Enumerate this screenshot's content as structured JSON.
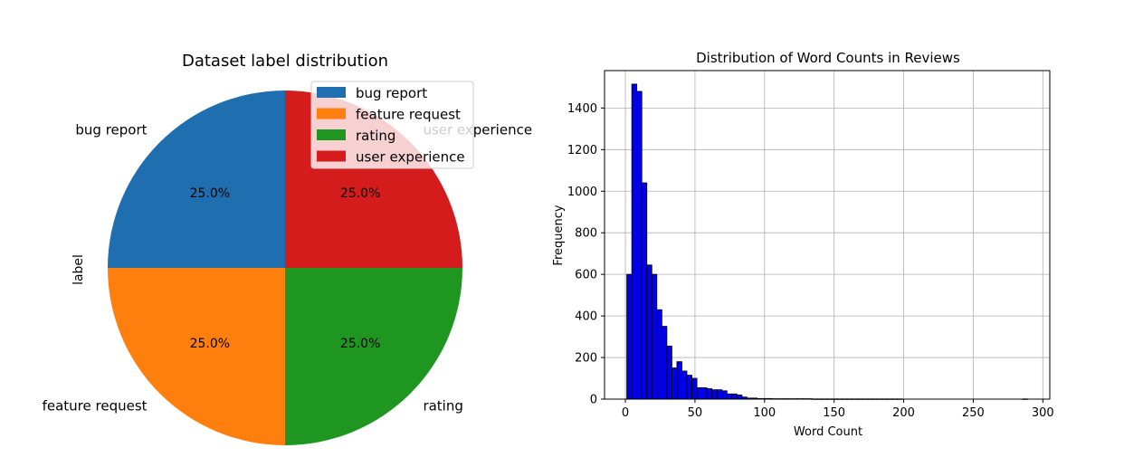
{
  "colors": {
    "bug_report": "#1f6fb0",
    "feature_request": "#ff7f0e",
    "rating": "#1f961f",
    "user_experience": "#d41c1c",
    "hist_fill": "#0000ee",
    "grid": "#b0b0b0"
  },
  "chart_data": [
    {
      "type": "pie",
      "title": "Dataset label distribution",
      "ylabel": "label",
      "slices": [
        {
          "label": "bug report",
          "value": 25.0,
          "pct_label": "25.0%"
        },
        {
          "label": "feature request",
          "value": 25.0,
          "pct_label": "25.0%"
        },
        {
          "label": "rating",
          "value": 25.0,
          "pct_label": "25.0%"
        },
        {
          "label": "user experience",
          "value": 25.0,
          "pct_label": "25.0%"
        }
      ],
      "legend": [
        "bug report",
        "feature request",
        "rating",
        "user experience"
      ],
      "legend_position": "top-right"
    },
    {
      "type": "bar",
      "subtype": "histogram",
      "title": "Distribution of Word Counts in Reviews",
      "xlabel": "Word Count",
      "ylabel": "Frequency",
      "xlim": [
        -15,
        305
      ],
      "ylim": [
        0,
        1580
      ],
      "xticks": [
        0,
        50,
        100,
        150,
        200,
        250,
        300
      ],
      "yticks": [
        0,
        200,
        400,
        600,
        800,
        1000,
        1200,
        1400
      ],
      "grid": true,
      "bin_start": 1,
      "bin_width": 3.6,
      "counts": [
        600,
        1515,
        1480,
        1040,
        645,
        600,
        430,
        350,
        255,
        150,
        180,
        135,
        115,
        100,
        55,
        55,
        50,
        45,
        45,
        40,
        25,
        25,
        20,
        10,
        5,
        5,
        3,
        3,
        3,
        2,
        2,
        2,
        2,
        2,
        2,
        2,
        2,
        1,
        1,
        1,
        1,
        1,
        1,
        1,
        1,
        1,
        1,
        1,
        1,
        1,
        1,
        1,
        1,
        1,
        1,
        0,
        0,
        0,
        0,
        0,
        0,
        0,
        0,
        0,
        0,
        0,
        0,
        0,
        0,
        0,
        0,
        0,
        0,
        0,
        0,
        0,
        0,
        0,
        0,
        1
      ]
    }
  ]
}
